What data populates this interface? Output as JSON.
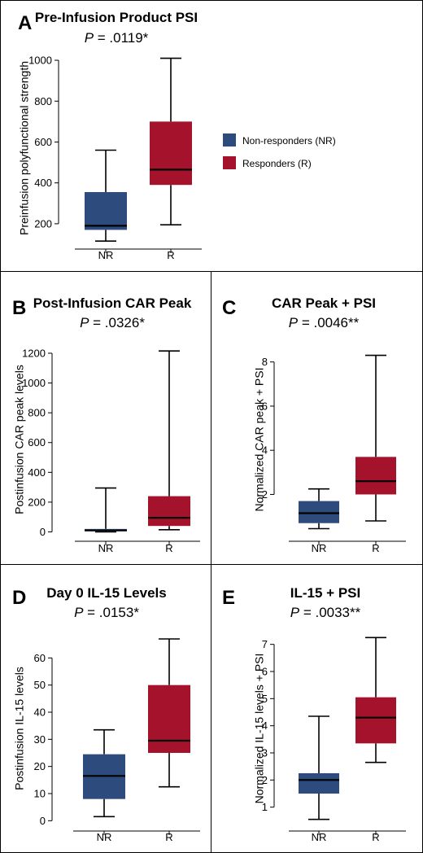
{
  "colors": {
    "NR": "#2e4b7d",
    "R": "#a4122c",
    "axis": "#000000"
  },
  "legend": [
    {
      "key": "NR",
      "label": "Non-responders (NR)",
      "color": "#2e4b7d"
    },
    {
      "key": "R",
      "label": "Responders (R)",
      "color": "#a4122c"
    }
  ],
  "chart_data": [
    {
      "id": "A",
      "type": "box",
      "panel_label": "A",
      "title": "Pre-Infusion Product PSI",
      "p_prefix": "P",
      "p_value": " = .0119*",
      "ylabel": "Preinfusion polyfunctional strength",
      "categories": [
        "NR",
        "R"
      ],
      "ylim": [
        100,
        1040
      ],
      "yticks": [
        200,
        400,
        600,
        800,
        1000
      ],
      "boxes": [
        {
          "group": "NR",
          "min": 115,
          "q1": 170,
          "median": 190,
          "q3": 355,
          "max": 560
        },
        {
          "group": "R",
          "min": 195,
          "q1": 390,
          "median": 465,
          "q3": 700,
          "max": 1010
        }
      ],
      "grid": false
    },
    {
      "id": "B",
      "type": "box",
      "panel_label": "B",
      "title": "Post-Infusion CAR Peak",
      "p_prefix": "P",
      "p_value": " = .0326*",
      "ylabel": "Postinfusion CAR peak levels",
      "categories": [
        "NR",
        "R"
      ],
      "ylim": [
        -30,
        1260
      ],
      "yticks": [
        0,
        200,
        400,
        600,
        800,
        1000,
        1200
      ],
      "boxes": [
        {
          "group": "NR",
          "min": 0,
          "q1": 5,
          "median": 10,
          "q3": 20,
          "max": 295
        },
        {
          "group": "R",
          "min": 15,
          "q1": 40,
          "median": 95,
          "q3": 240,
          "max": 1215
        }
      ],
      "grid": false
    },
    {
      "id": "C",
      "type": "box",
      "panel_label": "C",
      "title": "CAR Peak + PSI",
      "p_prefix": "P",
      "p_value": " = .0046**",
      "ylabel": "Normalized CAR peak + PSI",
      "categories": [
        "NR",
        "R"
      ],
      "ylim": [
        0.1,
        8.8
      ],
      "yticks": [
        2,
        4,
        6,
        8
      ],
      "boxes": [
        {
          "group": "NR",
          "min": 0.45,
          "q1": 0.7,
          "median": 1.15,
          "q3": 1.7,
          "max": 2.25
        },
        {
          "group": "R",
          "min": 0.8,
          "q1": 2.0,
          "median": 2.6,
          "q3": 3.7,
          "max": 8.3
        }
      ],
      "grid": false
    },
    {
      "id": "D",
      "type": "box",
      "panel_label": "D",
      "title": "Day 0 IL-15 Levels",
      "p_prefix": "P",
      "p_value": " = .0153*",
      "ylabel": "Postinfusion IL-15 levels",
      "categories": [
        "NR",
        "R"
      ],
      "ylim": [
        -2,
        70
      ],
      "yticks": [
        0,
        10,
        20,
        30,
        40,
        50,
        60
      ],
      "boxes": [
        {
          "group": "NR",
          "min": 1.5,
          "q1": 8,
          "median": 16.5,
          "q3": 24.5,
          "max": 33.5
        },
        {
          "group": "R",
          "min": 12.5,
          "q1": 25,
          "median": 29.5,
          "q3": 50,
          "max": 67
        }
      ],
      "grid": false
    },
    {
      "id": "E",
      "type": "box",
      "panel_label": "E",
      "title": "IL-15 + PSI",
      "p_prefix": "P",
      "p_value": " = .0033**",
      "ylabel": "Normalized IL-15 levels + PSI",
      "categories": [
        "NR",
        "R"
      ],
      "ylim": [
        0.3,
        7.5
      ],
      "yticks": [
        1,
        2,
        3,
        4,
        5,
        6,
        7
      ],
      "boxes": [
        {
          "group": "NR",
          "min": 0.55,
          "q1": 1.5,
          "median": 2.0,
          "q3": 2.25,
          "max": 4.35
        },
        {
          "group": "R",
          "min": 2.65,
          "q1": 3.35,
          "median": 4.3,
          "q3": 5.05,
          "max": 7.25
        }
      ],
      "grid": false
    }
  ]
}
